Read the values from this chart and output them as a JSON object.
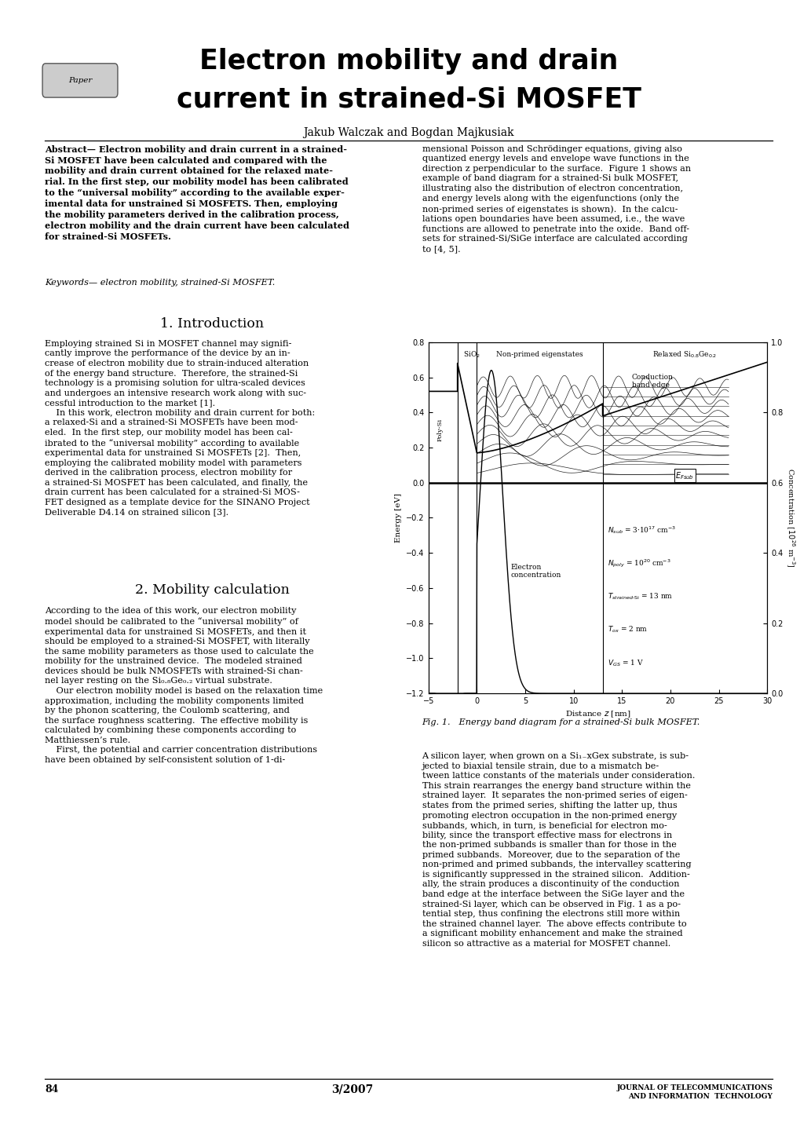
{
  "title_line1": "Electron mobility and drain",
  "title_line2": "current in strained-Si MOSFET",
  "authors": "Jakub Walczak and Bogdan Majkusiak",
  "paper_label": "Paper",
  "abstract_text": "Abstract— Electron mobility and drain current in a strained-\nSi MOSFET have been calculated and compared with the\nmobility and drain current obtained for the relaxed mate-\nrial. In the first step, our mobility model has been calibrated\nto the “universal mobility” according to the available exper-\nimental data for unstrained Si MOSFETS. Then, employing\nthe mobility parameters derived in the calibration process,\nelectron mobility and the drain current have been calculated\nfor strained-Si MOSFETs.",
  "keywords_text": "Keywords— electron mobility, strained-Si MOSFET.",
  "s1_title": "1. Introduction",
  "s1_text": "Employing strained Si in MOSFET channel may signifi-\ncantly improve the performance of the device by an in-\ncrease of electron mobility due to strain-induced alteration\nof the energy band structure.  Therefore, the strained-Si\ntechnology is a promising solution for ultra-scaled devices\nand undergoes an intensive research work along with suc-\ncessful introduction to the market [1].\n    In this work, electron mobility and drain current for both:\na relaxed-Si and a strained-Si MOSFETs have been mod-\neled.  In the first step, our mobility model has been cal-\nibrated to the “universal mobility” according to available\nexperimental data for unstrained Si MOSFETs [2].  Then,\nemploying the calibrated mobility model with parameters\nderived in the calibration process, electron mobility for\na strained-Si MOSFET has been calculated, and finally, the\ndrain current has been calculated for a strained-Si MOS-\nFET designed as a template device for the SINANO Project\nDeliverable D4.14 on strained silicon [3].",
  "s2_title": "2. Mobility calculation",
  "s2_text": "According to the idea of this work, our electron mobility\nmodel should be calibrated to the “universal mobility” of\nexperimental data for unstrained Si MOSFETs, and then it\nshould be employed to a strained-Si MOSFET, with literally\nthe same mobility parameters as those used to calculate the\nmobility for the unstrained device.  The modeled strained\ndevices should be bulk NMOSFETs with strained-Si chan-\nnel layer resting on the Si₀.₈Ge₀.₂ virtual substrate.\n    Our electron mobility model is based on the relaxation time\napproximation, including the mobility components limited\nby the phonon scattering, the Coulomb scattering, and\nthe surface roughness scattering.  The effective mobility is\ncalculated by combining these components according to\nMatthiessen’s rule.\n    First, the potential and carrier concentration distributions\nhave been obtained by self-consistent solution of 1-di-",
  "rc_text1": "mensional Poisson and Schrödinger equations, giving also\nquantized energy levels and envelope wave functions in the\ndirection z perpendicular to the surface.  Figure 1 shows an\nexample of band diagram for a strained-Si bulk MOSFET,\nillustrating also the distribution of electron concentration,\nand energy levels along with the eigenfunctions (only the\nnon-primed series of eigenstates is shown).  In the calcu-\nlations open boundaries have been assumed, i.e., the wave\nfunctions are allowed to penetrate into the oxide.  Band off-\nsets for strained-Si/SiGe interface are calculated according\nto [4, 5].",
  "rc_text2": "A silicon layer, when grown on a Si₁₋xGex substrate, is sub-\njected to biaxial tensile strain, due to a mismatch be-\ntween lattice constants of the materials under consideration.\nThis strain rearranges the energy band structure within the\nstrained layer.  It separates the non-primed series of eigen-\nstates from the primed series, shifting the latter up, thus\npromoting electron occupation in the non-primed energy\nsubbands, which, in turn, is beneficial for electron mo-\nbility, since the transport effective mass for electrons in\nthe non-primed subbands is smaller than for those in the\nprimed subbands.  Moreover, due to the separation of the\nnon-primed and primed subbands, the intervalley scattering\nis significantly suppressed in the strained silicon.  Addition-\nally, the strain produces a discontinuity of the conduction\nband edge at the interface between the SiGe layer and the\nstrained-Si layer, which can be observed in Fig. 1 as a po-\ntential step, thus confining the electrons still more within\nthe strained channel layer.  The above effects contribute to\na significant mobility enhancement and make the strained\nsilicon so attractive as a material for MOSFET channel.",
  "fig_caption": "Fig. 1.   Energy band diagram for a strained-Si bulk MOSFET.",
  "page_number": "84",
  "journal_date": "3/2007",
  "journal_name": "JOURNAL OF TELECOMMUNICATIONS\nAND INFORMATION  TECHNOLOGY",
  "background_color": "#ffffff"
}
